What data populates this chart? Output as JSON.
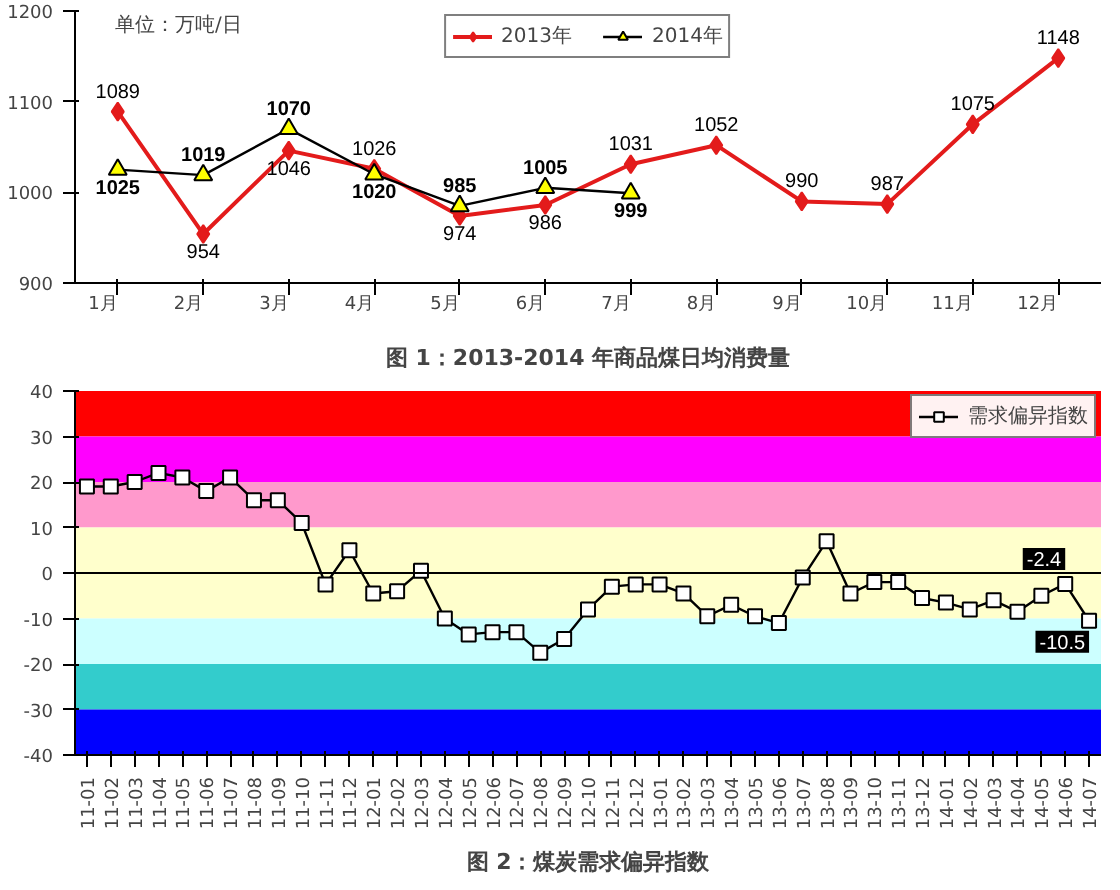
{
  "chart_data": [
    {
      "type": "line",
      "title": "图 1：2013-2014 年商品煤日均消费量",
      "annotations": [
        "单位：万吨/日"
      ],
      "categories": [
        "1月",
        "2月",
        "3月",
        "4月",
        "5月",
        "6月",
        "7月",
        "8月",
        "9月",
        "10月",
        "11月",
        "12月"
      ],
      "series": [
        {
          "name": "2013年",
          "color": "#e31b1b",
          "marker": "diamond",
          "values": [
            1089,
            954,
            1046,
            1026,
            974,
            986,
            1031,
            1052,
            990,
            987,
            1075,
            1148
          ]
        },
        {
          "name": "2014年",
          "color": "#000000",
          "marker": "triangle",
          "values": [
            1025,
            1019,
            1070,
            1020,
            985,
            1005,
            999,
            null,
            null,
            null,
            null,
            null
          ]
        }
      ],
      "ylim": [
        900,
        1200
      ],
      "yticks": [
        900,
        1000,
        1100,
        1200
      ],
      "grid": false,
      "legend": "top",
      "data_labels": true
    },
    {
      "type": "line",
      "title": "图 2：煤炭需求偏异指数",
      "categories": [
        "11-01",
        "11-02",
        "11-03",
        "11-04",
        "11-05",
        "11-06",
        "11-07",
        "11-08",
        "11-09",
        "11-10",
        "11-11",
        "11-12",
        "12-01",
        "12-02",
        "12-03",
        "12-04",
        "12-05",
        "12-06",
        "12-07",
        "12-08",
        "12-09",
        "12-10",
        "12-11",
        "12-12",
        "13-01",
        "13-02",
        "13-03",
        "13-04",
        "13-05",
        "13-06",
        "13-07",
        "13-08",
        "13-09",
        "13-10",
        "13-11",
        "13-12",
        "14-01",
        "14-02",
        "14-03",
        "14-04",
        "14-05",
        "14-06",
        "14-07"
      ],
      "series": [
        {
          "name": "需求偏异指数",
          "color": "#000000",
          "marker": "square",
          "values": [
            19,
            19,
            20,
            22,
            21,
            18,
            21,
            16,
            16,
            11,
            -2.5,
            5,
            -4.5,
            -4,
            0.5,
            -10,
            -13.5,
            -13,
            -13,
            -17.5,
            -14.5,
            -8,
            -3,
            -2.5,
            -2.5,
            -4.5,
            -9.5,
            -7,
            -9.5,
            -11,
            -1,
            7,
            -4.5,
            -2,
            -2,
            -5.5,
            -6.5,
            -8,
            -6,
            -8.5,
            -5,
            -2.4,
            -10.5
          ],
          "value_labels": [
            null,
            null,
            null,
            null,
            null,
            null,
            null,
            null,
            null,
            null,
            null,
            null,
            null,
            null,
            null,
            null,
            null,
            null,
            null,
            null,
            null,
            null,
            null,
            null,
            null,
            null,
            null,
            null,
            null,
            null,
            null,
            null,
            null,
            null,
            null,
            null,
            null,
            null,
            null,
            null,
            null,
            "-2.4",
            "-10.5"
          ]
        }
      ],
      "bands": [
        {
          "axis": "y",
          "from": 30,
          "to": 40,
          "color": "#ff0000"
        },
        {
          "axis": "y",
          "from": 20,
          "to": 30,
          "color": "#ff00ff"
        },
        {
          "axis": "y",
          "from": 10,
          "to": 20,
          "color": "#ff99cc"
        },
        {
          "axis": "y",
          "from": 0,
          "to": 10,
          "color": "#ffffcc"
        },
        {
          "axis": "y",
          "from": -10,
          "to": 0,
          "color": "#ffffcc"
        },
        {
          "axis": "y",
          "from": -20,
          "to": -10,
          "color": "#ccffff"
        },
        {
          "axis": "y",
          "from": -30,
          "to": -20,
          "color": "#33cccc"
        },
        {
          "axis": "y",
          "from": -40,
          "to": -30,
          "color": "#0000ff"
        }
      ],
      "ref_lines": [
        {
          "axis": "y",
          "value": 0,
          "color": "#000000"
        }
      ],
      "ylim": [
        -40,
        40
      ],
      "yticks": [
        -40,
        -30,
        -20,
        -10,
        0,
        10,
        20,
        30,
        40
      ],
      "grid": false,
      "legend": "top right"
    }
  ]
}
